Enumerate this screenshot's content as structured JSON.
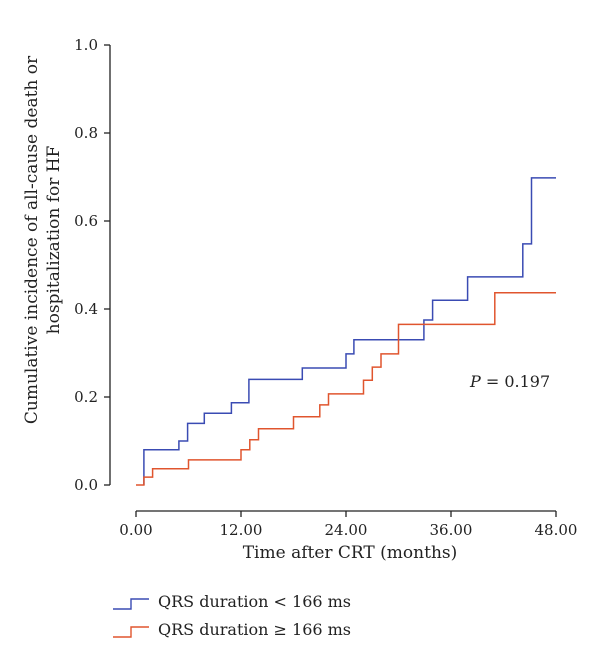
{
  "chart_data": {
    "type": "line",
    "step": true,
    "xlabel": "Time after CRT (months)",
    "ylabel": [
      "Cumulative incidence of all-cause death or",
      "hospitalization for HF"
    ],
    "xlim": [
      0,
      48
    ],
    "ylim": [
      0,
      1.0
    ],
    "x_ticks": [
      0,
      12,
      24,
      36,
      48
    ],
    "x_tick_labels": [
      "0.00",
      "12.00",
      "24.00",
      "36.00",
      "48.00"
    ],
    "y_ticks": [
      0,
      0.2,
      0.4,
      0.6,
      0.8,
      1.0
    ],
    "y_tick_labels": [
      "0.0",
      "0.2",
      "0.4",
      "0.6",
      "0.8",
      "1.0"
    ],
    "grid": false,
    "legend_position": "bottom-left",
    "annotation": {
      "italic": "P",
      "rest": " = 0.197"
    },
    "series": [
      {
        "name": "QRS duration < 166 ms",
        "color": "#3a4bb3",
        "points": [
          [
            0.9,
            0.0
          ],
          [
            0.9,
            0.08
          ],
          [
            4.9,
            0.08
          ],
          [
            4.9,
            0.1
          ],
          [
            5.9,
            0.1
          ],
          [
            5.9,
            0.14
          ],
          [
            7.8,
            0.14
          ],
          [
            7.8,
            0.163
          ],
          [
            10.9,
            0.163
          ],
          [
            10.9,
            0.187
          ],
          [
            12.9,
            0.187
          ],
          [
            12.9,
            0.24
          ],
          [
            19.0,
            0.24
          ],
          [
            19.0,
            0.266
          ],
          [
            24.0,
            0.266
          ],
          [
            24.0,
            0.298
          ],
          [
            24.9,
            0.298
          ],
          [
            24.9,
            0.33
          ],
          [
            32.9,
            0.33
          ],
          [
            32.9,
            0.375
          ],
          [
            33.9,
            0.375
          ],
          [
            33.9,
            0.42
          ],
          [
            37.9,
            0.42
          ],
          [
            37.9,
            0.473
          ],
          [
            44.2,
            0.473
          ],
          [
            44.2,
            0.548
          ],
          [
            45.2,
            0.548
          ],
          [
            45.2,
            0.698
          ],
          [
            48.0,
            0.698
          ]
        ]
      },
      {
        "name": "QRS duration ≥ 166 ms",
        "color": "#e0552e",
        "points": [
          [
            0.0,
            0.0
          ],
          [
            0.9,
            0.0
          ],
          [
            0.9,
            0.018
          ],
          [
            1.9,
            0.018
          ],
          [
            1.9,
            0.037
          ],
          [
            6.0,
            0.037
          ],
          [
            6.0,
            0.057
          ],
          [
            12.0,
            0.057
          ],
          [
            12.0,
            0.08
          ],
          [
            13.0,
            0.08
          ],
          [
            13.0,
            0.103
          ],
          [
            14.0,
            0.103
          ],
          [
            14.0,
            0.128
          ],
          [
            18.0,
            0.128
          ],
          [
            18.0,
            0.155
          ],
          [
            21.0,
            0.155
          ],
          [
            21.0,
            0.182
          ],
          [
            22.0,
            0.182
          ],
          [
            22.0,
            0.207
          ],
          [
            26.0,
            0.207
          ],
          [
            26.0,
            0.238
          ],
          [
            27.0,
            0.238
          ],
          [
            27.0,
            0.268
          ],
          [
            28.0,
            0.268
          ],
          [
            28.0,
            0.298
          ],
          [
            30.0,
            0.298
          ],
          [
            30.0,
            0.365
          ],
          [
            41.0,
            0.365
          ],
          [
            41.0,
            0.437
          ],
          [
            48.0,
            0.437
          ]
        ]
      }
    ]
  }
}
